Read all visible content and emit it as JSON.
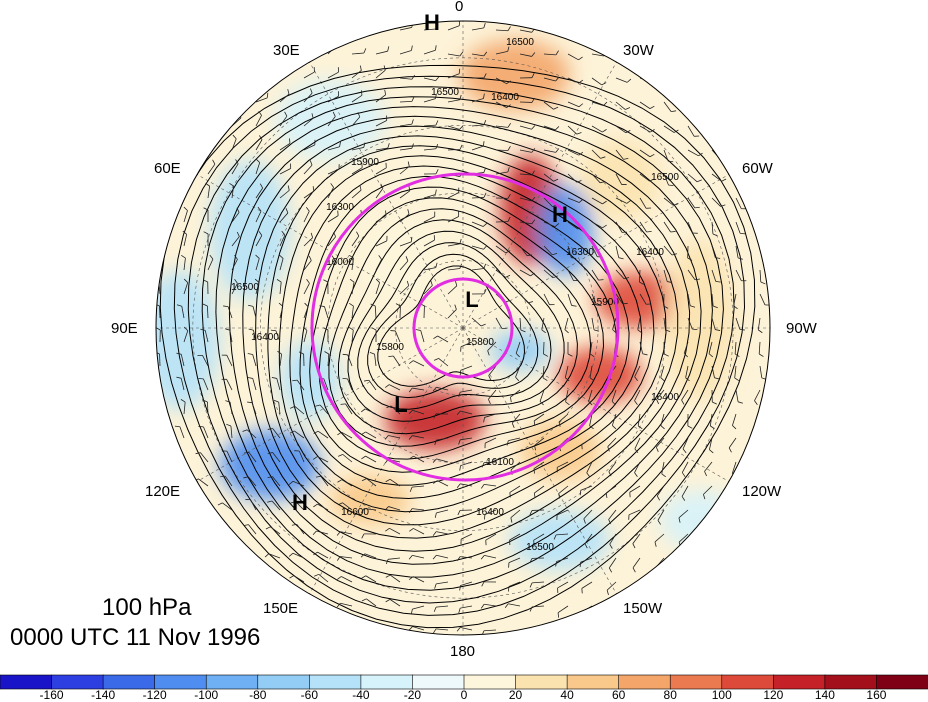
{
  "title": {
    "level": "100 hPa",
    "time": "0000 UTC 11 Nov 1996"
  },
  "longitude_labels": [
    "0",
    "30W",
    "60W",
    "90W",
    "120W",
    "150W",
    "180",
    "150E",
    "120E",
    "90E",
    "60E",
    "30E"
  ],
  "pressure_centers": [
    "H",
    "H",
    "H",
    "L",
    "L"
  ],
  "contour_labels": [
    "16500",
    "16500",
    "16400",
    "16500",
    "16400",
    "16300",
    "15900",
    "15800",
    "15800",
    "16000",
    "16100",
    "16400",
    "16500",
    "16600",
    "16500",
    "16400",
    "16300",
    "15900",
    "16400"
  ],
  "colorbar": {
    "ticks": [
      "-160",
      "-140",
      "-120",
      "-100",
      "-80",
      "-60",
      "-40",
      "-20",
      "0",
      "20",
      "40",
      "60",
      "80",
      "100",
      "120",
      "140",
      "160"
    ],
    "colors": [
      "#1a14c8",
      "#2d3fe0",
      "#3a6ae8",
      "#4f8ef0",
      "#6fb0f4",
      "#93cdf6",
      "#b5e2f8",
      "#d6f2fa",
      "#eef9fb",
      "#fdf6dc",
      "#fbe3b0",
      "#f8c98a",
      "#f3a56a",
      "#ec7a50",
      "#de4a3a",
      "#c42128",
      "#a3101c",
      "#7f0014"
    ]
  },
  "highlight_color": "#e22ee2"
}
